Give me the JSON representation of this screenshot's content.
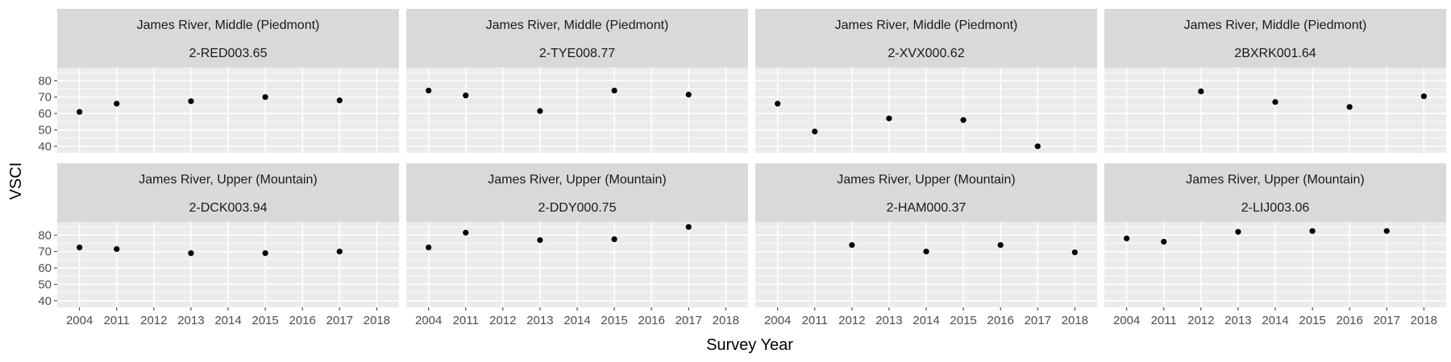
{
  "chart_data": {
    "type": "scatter",
    "xlabel": "Survey Year",
    "ylabel": "VSCI",
    "x_categories": [
      "2004",
      "2011",
      "2012",
      "2013",
      "2014",
      "2015",
      "2016",
      "2017",
      "2018"
    ],
    "ylim": [
      36,
      88
    ],
    "y_ticks": [
      40,
      50,
      60,
      70,
      80
    ],
    "grid": true,
    "point_color": "#000000",
    "panel_background": "#ebebeb",
    "strip_background": "#d9d9d9",
    "panels": [
      {
        "region": "James River, Middle (Piedmont)",
        "station": "2-RED003.65",
        "points": [
          {
            "x": "2004",
            "y": 61
          },
          {
            "x": "2011",
            "y": 66
          },
          {
            "x": "2013",
            "y": 67.5
          },
          {
            "x": "2015",
            "y": 70
          },
          {
            "x": "2017",
            "y": 68
          }
        ]
      },
      {
        "region": "James River, Middle (Piedmont)",
        "station": "2-TYE008.77",
        "points": [
          {
            "x": "2004",
            "y": 74
          },
          {
            "x": "2011",
            "y": 71
          },
          {
            "x": "2013",
            "y": 61.5
          },
          {
            "x": "2015",
            "y": 74
          },
          {
            "x": "2017",
            "y": 71.5
          }
        ]
      },
      {
        "region": "James River, Middle (Piedmont)",
        "station": "2-XVX000.62",
        "points": [
          {
            "x": "2004",
            "y": 66
          },
          {
            "x": "2011",
            "y": 49
          },
          {
            "x": "2013",
            "y": 57
          },
          {
            "x": "2015",
            "y": 56
          },
          {
            "x": "2017",
            "y": 40
          }
        ]
      },
      {
        "region": "James River, Middle (Piedmont)",
        "station": "2BXRK001.64",
        "points": [
          {
            "x": "2012",
            "y": 73.5
          },
          {
            "x": "2014",
            "y": 67
          },
          {
            "x": "2016",
            "y": 64
          },
          {
            "x": "2018",
            "y": 70.5
          }
        ]
      },
      {
        "region": "James River, Upper (Mountain)",
        "station": "2-DCK003.94",
        "points": [
          {
            "x": "2004",
            "y": 72.5
          },
          {
            "x": "2011",
            "y": 71.5
          },
          {
            "x": "2013",
            "y": 69
          },
          {
            "x": "2015",
            "y": 69
          },
          {
            "x": "2017",
            "y": 70
          }
        ]
      },
      {
        "region": "James River, Upper (Mountain)",
        "station": "2-DDY000.75",
        "points": [
          {
            "x": "2004",
            "y": 72.5
          },
          {
            "x": "2011",
            "y": 81.5
          },
          {
            "x": "2013",
            "y": 77
          },
          {
            "x": "2015",
            "y": 77.5
          },
          {
            "x": "2017",
            "y": 85
          }
        ]
      },
      {
        "region": "James River, Upper (Mountain)",
        "station": "2-HAM000.37",
        "points": [
          {
            "x": "2012",
            "y": 74
          },
          {
            "x": "2014",
            "y": 70
          },
          {
            "x": "2016",
            "y": 74
          },
          {
            "x": "2018",
            "y": 69.5
          }
        ]
      },
      {
        "region": "James River, Upper (Mountain)",
        "station": "2-LIJ003.06",
        "points": [
          {
            "x": "2004",
            "y": 78
          },
          {
            "x": "2011",
            "y": 76
          },
          {
            "x": "2013",
            "y": 82
          },
          {
            "x": "2015",
            "y": 82.5
          },
          {
            "x": "2017",
            "y": 82.5
          }
        ]
      }
    ]
  }
}
